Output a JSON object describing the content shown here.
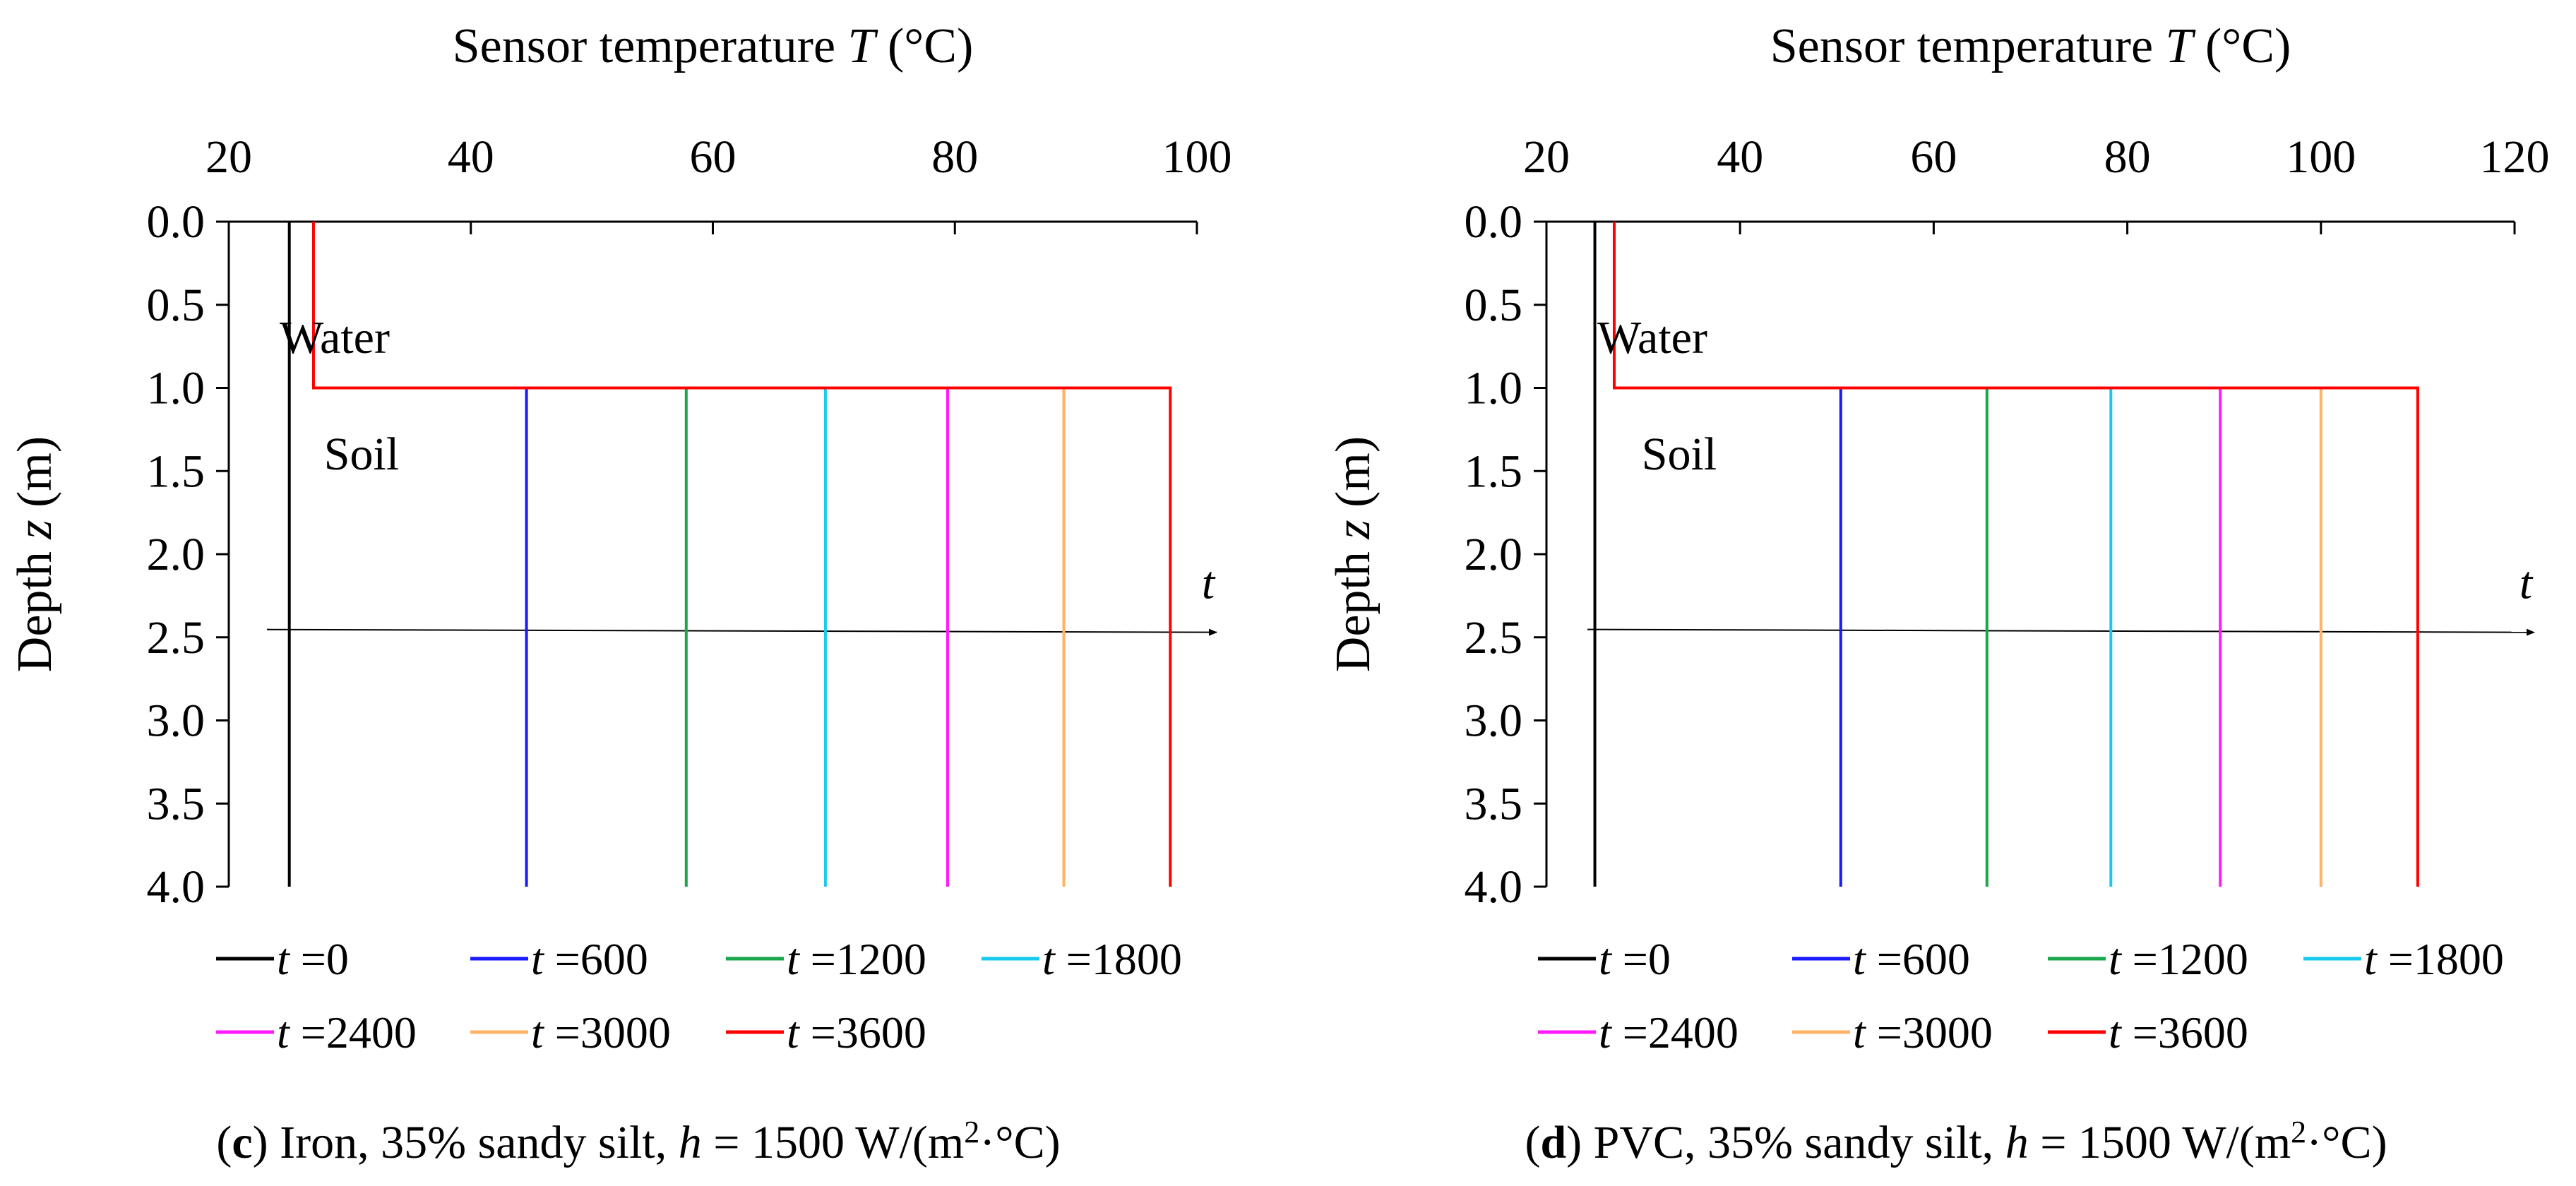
{
  "chart_data": [
    {
      "type": "line",
      "panel_letter": "c",
      "caption": {
        "letter": "c",
        "pre": " Iron, 35% sandy silt, ",
        "h_symbol": "h",
        "mid": " = 1500 W/(m",
        "sup": "2",
        "post": "·°C)"
      },
      "x_axis": {
        "label_pre": "Sensor temperature ",
        "label_var": "T",
        "label_post": "  (°C)",
        "ticks": [
          "20",
          "40",
          "60",
          "80",
          "100"
        ],
        "range": [
          20,
          100
        ],
        "position": "top"
      },
      "y_axis": {
        "label_pre": "Depth ",
        "label_var": "z",
        "label_post": " (m)",
        "ticks": [
          "0.0",
          "0.5",
          "1.0",
          "1.5",
          "2.0",
          "2.5",
          "3.0",
          "3.5",
          "4.0"
        ],
        "range": [
          0,
          4
        ],
        "inverted": true
      },
      "annotations": [
        "Water",
        "Soil"
      ],
      "time_arrow_label": "t",
      "time_arrow_depth": 2.47,
      "water_depth": 1.0,
      "series": [
        {
          "name_var": "t",
          "name_val": " =0",
          "color": "#000000",
          "surface_T": 25,
          "soil_T": 25
        },
        {
          "name_var": "t",
          "name_val": " =600",
          "color": "#1a1aff",
          "surface_T": 44.6,
          "soil_T": 44.6
        },
        {
          "name_var": "t",
          "name_val": " =1200",
          "color": "#1aa64a",
          "surface_T": 57.8,
          "soil_T": 57.8
        },
        {
          "name_var": "t",
          "name_val": " =1800",
          "color": "#19c8f0",
          "surface_T": 69.3,
          "soil_T": 69.3
        },
        {
          "name_var": "t",
          "name_val": " =2400",
          "color": "#ff1aff",
          "surface_T": 79.4,
          "soil_T": 79.4
        },
        {
          "name_var": "t",
          "name_val": " =3000",
          "color": "#ffb366",
          "surface_T": 89,
          "soil_T": 89
        },
        {
          "name_var": "t",
          "name_val": " =3600",
          "color": "#ff0000",
          "surface_T": 27,
          "soil_T": 97.8
        }
      ]
    },
    {
      "type": "line",
      "panel_letter": "d",
      "caption": {
        "letter": "d",
        "pre": " PVC, 35% sandy silt, ",
        "h_symbol": "h",
        "mid": " = 1500 W/(m",
        "sup": "2",
        "post": "·°C)"
      },
      "x_axis": {
        "label_pre": "Sensor temperature ",
        "label_var": "T",
        "label_post": "  (°C)",
        "ticks": [
          "20",
          "40",
          "60",
          "80",
          "100",
          "120"
        ],
        "range": [
          20,
          120
        ],
        "position": "top"
      },
      "y_axis": {
        "label_pre": "Depth ",
        "label_var": "z",
        "label_post": " (m)",
        "ticks": [
          "0.0",
          "0.5",
          "1.0",
          "1.5",
          "2.0",
          "2.5",
          "3.0",
          "3.5",
          "4.0"
        ],
        "range": [
          0,
          4
        ],
        "inverted": true
      },
      "annotations": [
        "Water",
        "Soil"
      ],
      "time_arrow_label": "t",
      "time_arrow_depth": 2.47,
      "water_depth": 1.0,
      "series": [
        {
          "name_var": "t",
          "name_val": " =0",
          "color": "#000000",
          "surface_T": 25,
          "soil_T": 25
        },
        {
          "name_var": "t",
          "name_val": " =600",
          "color": "#1a1aff",
          "surface_T": 50.4,
          "soil_T": 50.4
        },
        {
          "name_var": "t",
          "name_val": " =1200",
          "color": "#1aa64a",
          "surface_T": 65.5,
          "soil_T": 65.5
        },
        {
          "name_var": "t",
          "name_val": " =1800",
          "color": "#19c8f0",
          "surface_T": 78.3,
          "soil_T": 78.3
        },
        {
          "name_var": "t",
          "name_val": " =2400",
          "color": "#ff1aff",
          "surface_T": 89.6,
          "soil_T": 89.6
        },
        {
          "name_var": "t",
          "name_val": " =3000",
          "color": "#ffb366",
          "surface_T": 100,
          "soil_T": 100
        },
        {
          "name_var": "t",
          "name_val": " =3600",
          "color": "#ff0000",
          "surface_T": 27,
          "soil_T": 110
        }
      ]
    }
  ]
}
